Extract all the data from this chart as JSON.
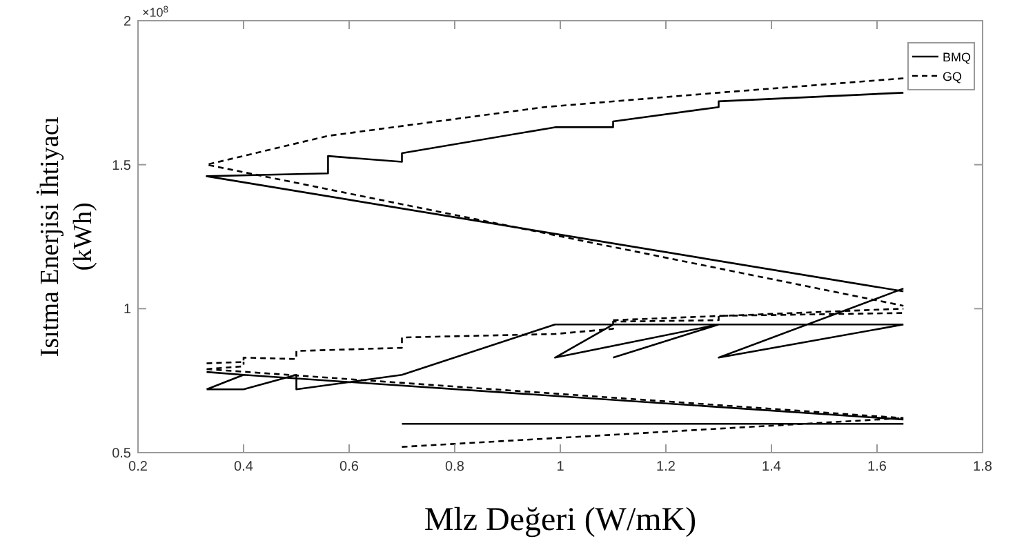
{
  "chart_data": {
    "type": "line",
    "xlabel": "Mlz Değeri (W/mK)",
    "ylabel": "Isıtma Enerjisi İhtiyacı (kWh)",
    "annotations": [
      "×10$^{8}$"
    ],
    "xlim": [
      0.2,
      1.8
    ],
    "xticks": [
      0.2,
      0.4,
      0.6,
      0.8,
      1,
      1.2,
      1.4,
      1.6,
      1.8
    ],
    "ylim": [
      0.5,
      2
    ],
    "yticks": [
      0.5,
      1,
      1.5,
      2
    ],
    "grid": false,
    "legend": "top right",
    "series": [
      {
        "name": "BMQ",
        "color": "#000000",
        "line_style": "solid",
        "x": [
          1.65,
          1.3,
          1.3,
          1.1,
          1.1,
          0.99,
          0.7,
          0.7,
          0.56,
          0.56,
          0.33,
          1.65,
          null,
          0.33,
          0.4,
          0.5,
          0.5,
          0.7,
          0.99,
          1.65,
          null,
          1.1,
          0.99,
          1.3,
          1.1,
          null,
          1.65,
          1.3,
          1.65,
          null,
          0.33,
          0.4,
          0.33,
          null,
          0.33,
          0.4,
          1.65,
          null,
          0.7,
          1.65
        ],
        "values": [
          1.75,
          1.72,
          1.7,
          1.65,
          1.63,
          1.63,
          1.54,
          1.51,
          1.53,
          1.47,
          1.46,
          1.06,
          null,
          0.72,
          0.72,
          0.77,
          0.72,
          0.77,
          0.945,
          0.945,
          null,
          0.945,
          0.83,
          0.945,
          0.83,
          null,
          0.945,
          0.83,
          1.07,
          null,
          0.72,
          0.77,
          0.78,
          null,
          0.78,
          0.77,
          0.615,
          null,
          0.6,
          0.6
        ]
      },
      {
        "name": "GQ",
        "color": "#000000",
        "line_style": "dashed",
        "x": [
          1.65,
          1.3,
          0.97,
          0.56,
          0.33,
          1.65,
          null,
          0.33,
          0.4,
          0.4,
          0.5,
          0.5,
          0.7,
          0.7,
          0.99,
          1.1,
          1.1,
          1.3,
          1.3,
          1.65,
          null,
          0.33,
          0.4,
          0.4,
          null,
          1.1,
          1.65,
          null,
          0.33,
          1.65,
          null,
          0.7,
          1.65
        ],
        "values": [
          1.8,
          1.75,
          1.7,
          1.6,
          1.5,
          1.01,
          null,
          0.81,
          0.815,
          0.83,
          0.825,
          0.853,
          0.864,
          0.9,
          0.912,
          0.93,
          0.955,
          0.96,
          0.975,
          0.985,
          null,
          0.79,
          0.8,
          0.815,
          null,
          0.96,
          1.0,
          null,
          0.79,
          0.62,
          null,
          0.52,
          0.62
        ]
      }
    ]
  }
}
